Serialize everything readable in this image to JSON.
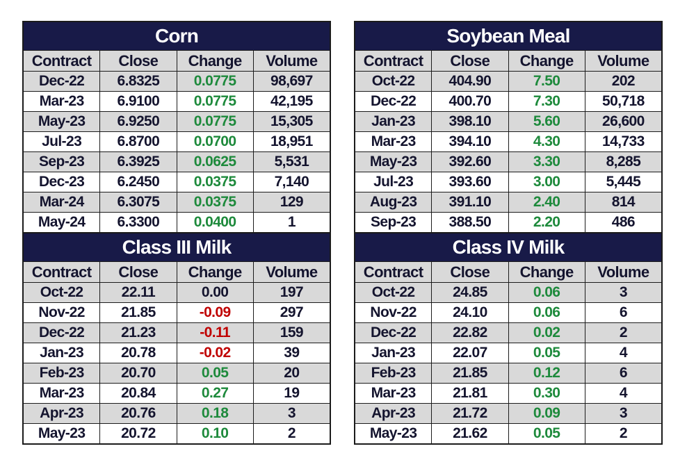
{
  "colors": {
    "title_bg": "#181a48",
    "header_bg": "#d9d9d9",
    "positive": "#1e8a3c",
    "negative": "#c00000"
  },
  "columns": [
    "Contract",
    "Close",
    "Change",
    "Volume"
  ],
  "tables": [
    {
      "id": "corn",
      "title": "Corn",
      "rows": [
        [
          "Dec-22",
          "6.8325",
          "0.0775",
          "98,697"
        ],
        [
          "Mar-23",
          "6.9100",
          "0.0775",
          "42,195"
        ],
        [
          "May-23",
          "6.9250",
          "0.0775",
          "15,305"
        ],
        [
          "Jul-23",
          "6.8700",
          "0.0700",
          "18,951"
        ],
        [
          "Sep-23",
          "6.3925",
          "0.0625",
          "5,531"
        ],
        [
          "Dec-23",
          "6.2450",
          "0.0375",
          "7,140"
        ],
        [
          "Mar-24",
          "6.3075",
          "0.0375",
          "129"
        ],
        [
          "May-24",
          "6.3300",
          "0.0400",
          "1"
        ]
      ]
    },
    {
      "id": "soybean-meal",
      "title": "Soybean Meal",
      "rows": [
        [
          "Oct-22",
          "404.90",
          "7.50",
          "202"
        ],
        [
          "Dec-22",
          "400.70",
          "7.30",
          "50,718"
        ],
        [
          "Jan-23",
          "398.10",
          "5.60",
          "26,600"
        ],
        [
          "Mar-23",
          "394.10",
          "4.30",
          "14,733"
        ],
        [
          "May-23",
          "392.60",
          "3.30",
          "8,285"
        ],
        [
          "Jul-23",
          "393.60",
          "3.00",
          "5,445"
        ],
        [
          "Aug-23",
          "391.10",
          "2.40",
          "814"
        ],
        [
          "Sep-23",
          "388.50",
          "2.20",
          "486"
        ]
      ]
    },
    {
      "id": "class-iii-milk",
      "title": "Class III Milk",
      "rows": [
        [
          "Oct-22",
          "22.11",
          "0.00",
          "197"
        ],
        [
          "Nov-22",
          "21.85",
          "-0.09",
          "297"
        ],
        [
          "Dec-22",
          "21.23",
          "-0.11",
          "159"
        ],
        [
          "Jan-23",
          "20.78",
          "-0.02",
          "39"
        ],
        [
          "Feb-23",
          "20.70",
          "0.05",
          "20"
        ],
        [
          "Mar-23",
          "20.84",
          "0.27",
          "19"
        ],
        [
          "Apr-23",
          "20.76",
          "0.18",
          "3"
        ],
        [
          "May-23",
          "20.72",
          "0.10",
          "2"
        ]
      ]
    },
    {
      "id": "class-iv-milk",
      "title": "Class IV Milk",
      "rows": [
        [
          "Oct-22",
          "24.85",
          "0.06",
          "3"
        ],
        [
          "Nov-22",
          "24.10",
          "0.06",
          "6"
        ],
        [
          "Dec-22",
          "22.82",
          "0.02",
          "2"
        ],
        [
          "Jan-23",
          "22.07",
          "0.05",
          "4"
        ],
        [
          "Feb-23",
          "21.85",
          "0.12",
          "6"
        ],
        [
          "Mar-23",
          "21.81",
          "0.30",
          "4"
        ],
        [
          "Apr-23",
          "21.72",
          "0.09",
          "3"
        ],
        [
          "May-23",
          "21.62",
          "0.05",
          "2"
        ]
      ]
    }
  ]
}
